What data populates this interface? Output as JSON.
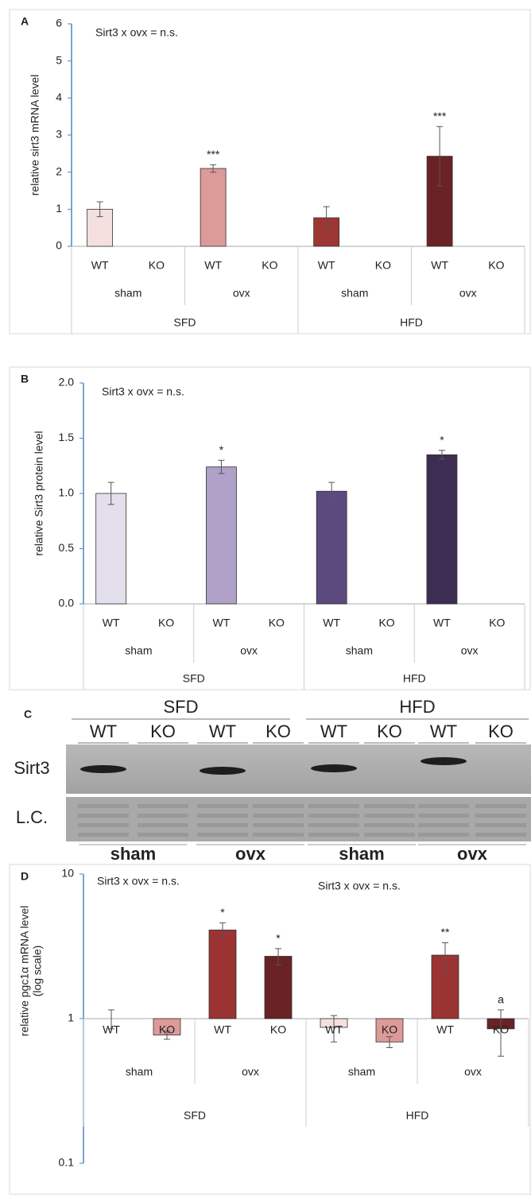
{
  "chart_data": [
    {
      "type": "bar",
      "label": "A",
      "ylabel": [
        "relative sirt3 mRNA level"
      ],
      "notes": [
        "Sirt3 x ovx = n.s."
      ],
      "categories": [
        "WT",
        "KO",
        "WT",
        "KO",
        "WT",
        "KO",
        "WT",
        "KO"
      ],
      "groups": [
        "sham",
        "ovx",
        "sham",
        "ovx"
      ],
      "supergroups": [
        "SFD",
        "HFD"
      ],
      "values": [
        1.0,
        0,
        2.1,
        0,
        0.77,
        0,
        2.43,
        0
      ],
      "errors": [
        0.2,
        null,
        0.1,
        null,
        0.3,
        null,
        0.8,
        null
      ],
      "annotations": [
        null,
        null,
        "***",
        null,
        null,
        null,
        "***",
        null
      ],
      "colors": [
        "#f3e0df",
        "#f3e0df",
        "#dc9a98",
        "#dc9a98",
        "#9e3535",
        "#9e3535",
        "#6b2224",
        "#6b2224"
      ],
      "ylim": [
        0,
        6
      ],
      "yticks": [
        0,
        1,
        2,
        3,
        4,
        5,
        6
      ]
    },
    {
      "type": "bar",
      "label": "B",
      "ylabel": [
        "relative Sirt3 protein level"
      ],
      "notes": [
        "Sirt3 x ovx = n.s."
      ],
      "categories": [
        "WT",
        "KO",
        "WT",
        "KO",
        "WT",
        "KO",
        "WT",
        "KO"
      ],
      "groups": [
        "sham",
        "ovx",
        "sham",
        "ovx"
      ],
      "supergroups": [
        "SFD",
        "HFD"
      ],
      "values": [
        1.0,
        0,
        1.24,
        0,
        1.02,
        0,
        1.35,
        0
      ],
      "errors": [
        0.1,
        null,
        0.06,
        null,
        0.08,
        null,
        0.04,
        null
      ],
      "annotations": [
        null,
        null,
        "*",
        null,
        null,
        null,
        "*",
        null
      ],
      "colors": [
        "#e3dfec",
        "#e3dfec",
        "#b0a1c8",
        "#b0a1c8",
        "#5c4a7f",
        "#5c4a7f",
        "#3d2d52",
        "#3d2d52"
      ],
      "ylim": [
        0,
        2
      ],
      "yticks": [
        {
          "value": 0,
          "label": "0.0"
        },
        {
          "value": 0.5,
          "label": "0.5"
        },
        {
          "value": 1,
          "label": "1.0"
        },
        {
          "value": 1.5,
          "label": "1.5"
        },
        {
          "value": 2,
          "label": "2.0"
        }
      ]
    },
    {
      "type": "bar",
      "label": "D",
      "ylabel": [
        "relative pgc1α mRNA level",
        "(log scale)"
      ],
      "notes": [
        "Sirt3 x ovx = n.s.",
        "Sirt3 x ovx = n.s."
      ],
      "categories": [
        "WT",
        "KO",
        "WT",
        "KO",
        "WT",
        "KO",
        "WT",
        "KO"
      ],
      "groups": [
        "sham",
        "ovx",
        "sham",
        "ovx"
      ],
      "supergroups": [
        "SFD",
        "HFD"
      ],
      "values": [
        1.0,
        0.77,
        4.1,
        2.7,
        0.87,
        0.69,
        2.75,
        0.85
      ],
      "errors": [
        0.15,
        0.05,
        0.5,
        0.35,
        0.18,
        0.06,
        0.6,
        0.3
      ],
      "annotations": [
        null,
        null,
        "*",
        "*",
        null,
        null,
        "**",
        "a"
      ],
      "colors": [
        "#f3e0df",
        "#dc9a98",
        "#9b3333",
        "#6b2224",
        "#f3e0df",
        "#dc9a98",
        "#9b3333",
        "#6b2224"
      ],
      "log_scale": true,
      "axis_crosses": 1,
      "ylim": [
        0.1,
        10
      ],
      "yticks": [
        0.1,
        1,
        10
      ]
    }
  ],
  "blot": {
    "label": "C",
    "diets": [
      "SFD",
      "HFD"
    ],
    "lanes": [
      "WT",
      "KO",
      "WT",
      "KO",
      "WT",
      "KO",
      "WT",
      "KO"
    ],
    "rows": [
      "Sirt3",
      "L.C."
    ],
    "groups": [
      "sham",
      "ovx",
      "sham",
      "ovx"
    ]
  }
}
